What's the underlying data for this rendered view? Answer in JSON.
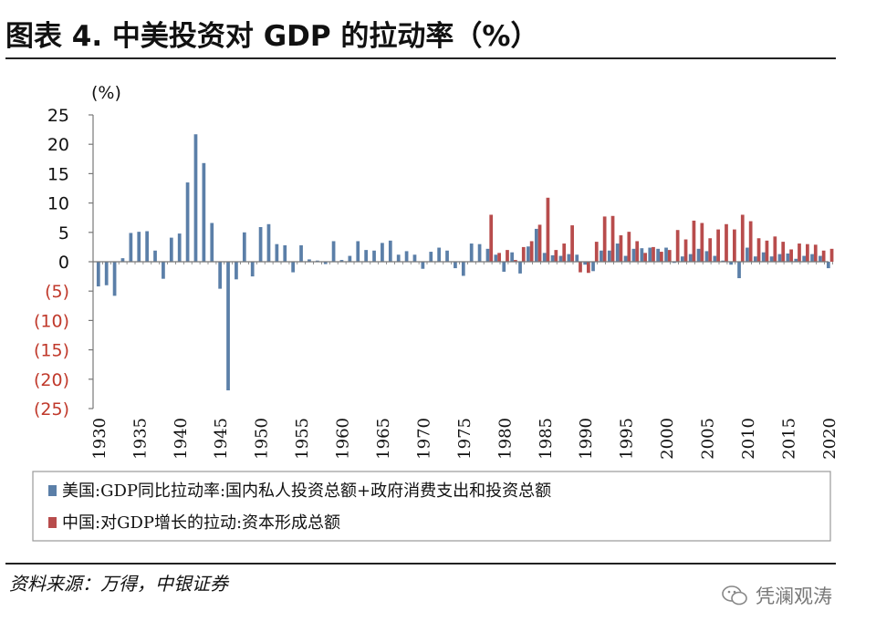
{
  "title": "图表 4. 中美投资对 GDP 的拉动率（%）",
  "source": "资料来源：万得，中银证券",
  "watermark": "凭澜观涛",
  "colors": {
    "us": "#5b7fa8",
    "china": "#b84c4c",
    "negative_tick": "#c0392b",
    "axis": "#777777",
    "text": "#111111"
  },
  "chart_data": {
    "type": "bar",
    "ylabel": "(%)",
    "ylim": [
      -25,
      25
    ],
    "yticks": [
      {
        "value": 25,
        "label": "25"
      },
      {
        "value": 20,
        "label": "20"
      },
      {
        "value": 15,
        "label": "15"
      },
      {
        "value": 10,
        "label": "10"
      },
      {
        "value": 5,
        "label": "5"
      },
      {
        "value": 0,
        "label": "0"
      },
      {
        "value": -5,
        "label": "(5)"
      },
      {
        "value": -10,
        "label": "(10)"
      },
      {
        "value": -15,
        "label": "(15)"
      },
      {
        "value": -20,
        "label": "(20)"
      },
      {
        "value": -25,
        "label": "(25)"
      }
    ],
    "xlim": [
      1930,
      2020
    ],
    "xticks": [
      "1930",
      "1935",
      "1940",
      "1945",
      "1950",
      "1955",
      "1960",
      "1965",
      "1970",
      "1975",
      "1980",
      "1985",
      "1990",
      "1995",
      "2000",
      "2005",
      "2010",
      "2015",
      "2020"
    ],
    "legend": {
      "position": "bottom"
    },
    "series": [
      {
        "name": "美国:GDP同比拉动率:国内私人投资总额+政府消费支出和投资总额",
        "color": "#5b7fa8",
        "x": [
          1930,
          1931,
          1932,
          1933,
          1934,
          1935,
          1936,
          1937,
          1938,
          1939,
          1940,
          1941,
          1942,
          1943,
          1944,
          1945,
          1946,
          1947,
          1948,
          1949,
          1950,
          1951,
          1952,
          1953,
          1954,
          1955,
          1956,
          1957,
          1958,
          1959,
          1960,
          1961,
          1962,
          1963,
          1964,
          1965,
          1966,
          1967,
          1968,
          1969,
          1970,
          1971,
          1972,
          1973,
          1974,
          1975,
          1976,
          1977,
          1978,
          1979,
          1980,
          1981,
          1982,
          1983,
          1984,
          1985,
          1986,
          1987,
          1988,
          1989,
          1990,
          1991,
          1992,
          1993,
          1994,
          1995,
          1996,
          1997,
          1998,
          1999,
          2000,
          2001,
          2002,
          2003,
          2004,
          2005,
          2006,
          2007,
          2008,
          2009,
          2010,
          2011,
          2012,
          2013,
          2014,
          2015,
          2016,
          2017,
          2018,
          2019,
          2020
        ],
        "values": [
          -4.2,
          -4.0,
          -5.8,
          0.6,
          4.9,
          5.1,
          5.2,
          1.9,
          -2.9,
          4.1,
          4.8,
          13.5,
          21.7,
          16.8,
          6.6,
          -4.6,
          -21.9,
          -3.0,
          5.0,
          -2.5,
          5.9,
          6.4,
          3.0,
          2.8,
          -1.8,
          2.8,
          0.4,
          0.2,
          -0.4,
          3.5,
          0.3,
          1.0,
          3.5,
          2.0,
          1.9,
          3.2,
          3.6,
          1.2,
          1.8,
          1.2,
          -1.2,
          1.7,
          2.4,
          1.9,
          -1.1,
          -2.4,
          3.1,
          3.0,
          2.2,
          1.2,
          -1.7,
          1.6,
          -2.0,
          2.6,
          5.6,
          1.5,
          1.1,
          1.0,
          1.3,
          1.2,
          -0.5,
          -1.6,
          1.9,
          1.9,
          3.1,
          1.0,
          2.2,
          2.3,
          2.4,
          2.2,
          2.4,
          -0.2,
          0.9,
          1.3,
          2.2,
          1.8,
          1.0,
          0.2,
          -0.5,
          -2.8,
          2.4,
          0.9,
          1.6,
          0.9,
          1.3,
          1.4,
          0.5,
          1.0,
          1.3,
          1.0,
          -1.1
        ]
      },
      {
        "name": "中国:对GDP增长的拉动:资本形成总额",
        "color": "#b84c4c",
        "x": [
          1978,
          1979,
          1980,
          1981,
          1982,
          1983,
          1984,
          1985,
          1986,
          1987,
          1988,
          1989,
          1990,
          1991,
          1992,
          1993,
          1994,
          1995,
          1996,
          1997,
          1998,
          1999,
          2000,
          2001,
          2002,
          2003,
          2004,
          2005,
          2006,
          2007,
          2008,
          2009,
          2010,
          2011,
          2012,
          2013,
          2014,
          2015,
          2016,
          2017,
          2018,
          2019,
          2020
        ],
        "values": [
          8.0,
          1.5,
          2.0,
          0.3,
          2.5,
          3.5,
          6.3,
          10.9,
          2.0,
          3.1,
          6.2,
          -1.8,
          -1.9,
          3.4,
          7.7,
          7.8,
          4.5,
          5.1,
          3.5,
          1.5,
          2.5,
          1.7,
          2.0,
          5.4,
          3.8,
          7.0,
          6.6,
          4.0,
          5.5,
          6.4,
          5.5,
          8.0,
          6.9,
          4.0,
          3.6,
          4.3,
          3.4,
          2.1,
          3.1,
          3.0,
          2.9,
          1.9,
          2.2
        ]
      }
    ]
  }
}
